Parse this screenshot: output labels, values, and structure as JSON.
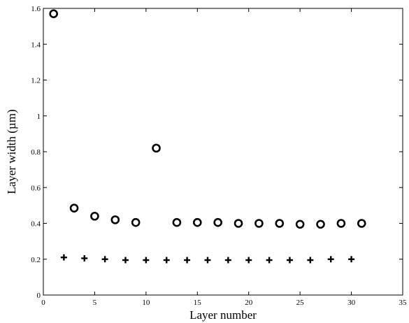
{
  "chart_data": {
    "type": "scatter",
    "title": "",
    "xlabel": "Layer number",
    "ylabel": "Layer width (µm)",
    "xlim": [
      0,
      35
    ],
    "ylim": [
      0,
      1.6
    ],
    "xticks": [
      0,
      5,
      10,
      15,
      20,
      25,
      30,
      35
    ],
    "yticks": [
      0,
      0.2,
      0.4,
      0.6,
      0.8,
      1,
      1.2,
      1.4,
      1.6
    ],
    "xtick_labels": [
      "0",
      "5",
      "10",
      "15",
      "20",
      "25",
      "30",
      "35"
    ],
    "ytick_labels": [
      "0",
      "0.2",
      "0.4",
      "0.6",
      "0.8",
      "1",
      "1.2",
      "1.4",
      "1.6"
    ],
    "grid": false,
    "series": [
      {
        "marker": "circle",
        "color": "#000000",
        "x": [
          1,
          3,
          5,
          7,
          9,
          11,
          13,
          15,
          17,
          19,
          21,
          23,
          25,
          27,
          29,
          31
        ],
        "y": [
          1.57,
          0.485,
          0.44,
          0.42,
          0.405,
          0.82,
          0.405,
          0.405,
          0.405,
          0.4,
          0.4,
          0.4,
          0.395,
          0.395,
          0.4,
          0.4
        ]
      },
      {
        "marker": "plus",
        "color": "#000000",
        "x": [
          2,
          4,
          6,
          8,
          10,
          12,
          14,
          16,
          18,
          20,
          22,
          24,
          26,
          28,
          30
        ],
        "y": [
          0.21,
          0.205,
          0.2,
          0.195,
          0.195,
          0.195,
          0.195,
          0.195,
          0.195,
          0.195,
          0.195,
          0.195,
          0.195,
          0.2,
          0.2
        ]
      }
    ]
  }
}
